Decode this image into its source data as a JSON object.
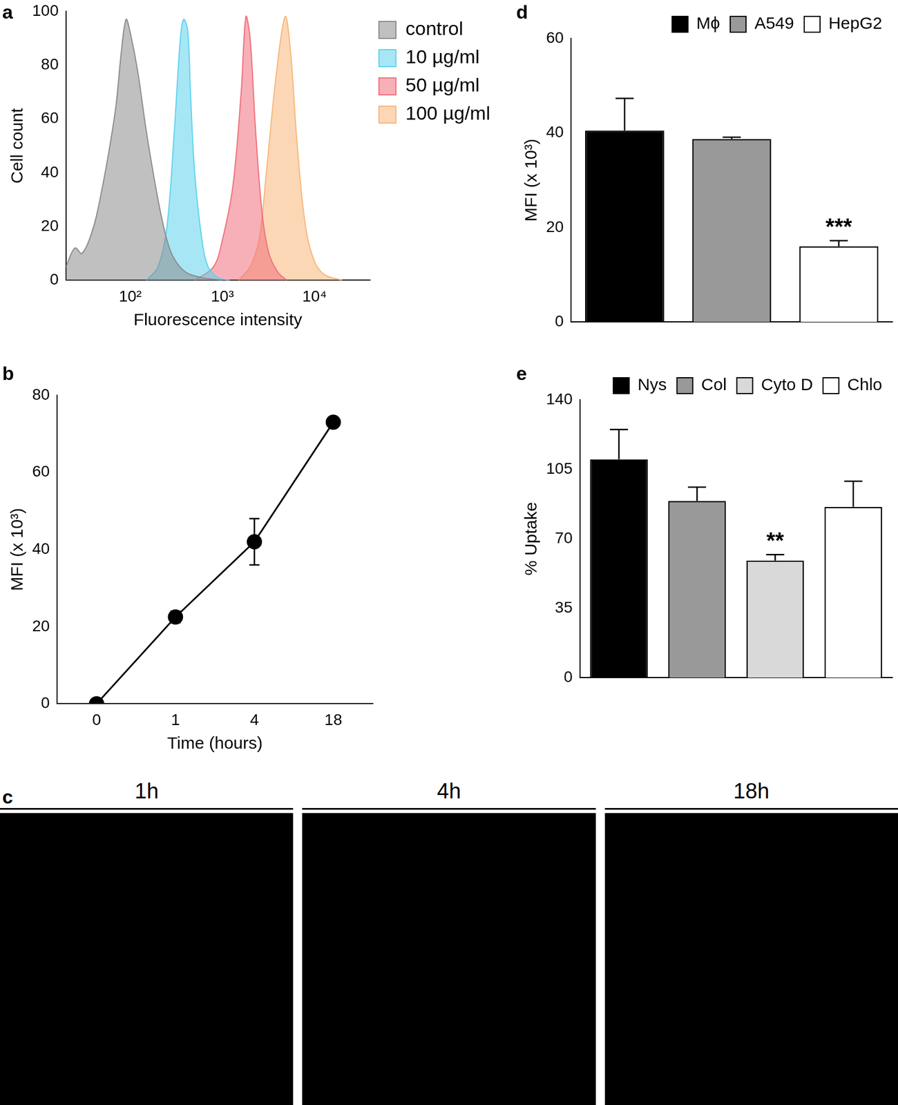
{
  "chart_data": [
    {
      "type": "area",
      "title": "a",
      "x_label": "Fluorescence intensity",
      "y_label": "Cell count",
      "log": "x",
      "grid": false,
      "legend": "right",
      "xlim": [
        20,
        40000
      ],
      "xticks": [
        {
          "value": 100,
          "label": "10²"
        },
        {
          "value": 1000,
          "label": "10³"
        },
        {
          "value": 10000,
          "label": "10⁴"
        }
      ],
      "ylim": [
        0,
        100
      ],
      "yticks": [
        0,
        20,
        40,
        60,
        80,
        100
      ],
      "series": [
        {
          "name": "control",
          "color": "#8c8c8c",
          "x": [
            20,
            25,
            30,
            40,
            50,
            60,
            70,
            80,
            90,
            100,
            120,
            150,
            200,
            250,
            300,
            400,
            600,
            1000
          ],
          "values": [
            5,
            12,
            10,
            20,
            35,
            50,
            65,
            85,
            97,
            92,
            78,
            55,
            30,
            15,
            8,
            3,
            1,
            0
          ]
        },
        {
          "name": "10 µg/ml",
          "color": "#5fd3ec",
          "x": [
            150,
            200,
            250,
            300,
            350,
            380,
            420,
            450,
            500,
            600,
            700,
            900,
            1200
          ],
          "values": [
            0,
            5,
            20,
            55,
            90,
            97,
            93,
            70,
            40,
            15,
            5,
            1,
            0
          ]
        },
        {
          "name": "50 µg/ml",
          "color": "#f0707c",
          "x": [
            500,
            800,
            1000,
            1300,
            1600,
            1800,
            2000,
            2300,
            2700,
            3200,
            4000,
            5000
          ],
          "values": [
            0,
            5,
            15,
            35,
            70,
            98,
            90,
            55,
            25,
            10,
            3,
            0
          ]
        },
        {
          "name": "100 µg/ml",
          "color": "#f7b77a",
          "x": [
            1500,
            2000,
            2500,
            3000,
            3800,
            4800,
            5500,
            6500,
            8000,
            10000,
            13000,
            20000
          ],
          "values": [
            0,
            5,
            15,
            40,
            75,
            98,
            85,
            50,
            20,
            7,
            2,
            0
          ]
        }
      ]
    },
    {
      "type": "line",
      "title": "b",
      "x_label": "Time (hours)",
      "y_label": "MFI (x 10³)",
      "grid": false,
      "marker": "circle",
      "color": "#000000",
      "categories": [
        "0",
        "1",
        "4",
        "18"
      ],
      "values": [
        0,
        22.5,
        42,
        73
      ],
      "errors": [
        null,
        1.5,
        6,
        null
      ],
      "ylim": [
        0,
        80
      ],
      "yticks": [
        0,
        20,
        40,
        60,
        80
      ]
    },
    {
      "type": "image",
      "title": "c",
      "panels": [
        "1h",
        "4h",
        "18h"
      ]
    },
    {
      "type": "bar",
      "title": "d",
      "y_label": "MFI (x 10³)",
      "grid": false,
      "legend": "upper right",
      "tick_labels": "y",
      "categories": [
        "Mϕ",
        "A549",
        "HepG2"
      ],
      "values": [
        40.5,
        38.7,
        16
      ],
      "errors": [
        6.8,
        0.4,
        1.2
      ],
      "colors": [
        "#000000",
        "#999999",
        "#ffffff"
      ],
      "ylim": [
        0,
        60
      ],
      "yticks": [
        0,
        20,
        40,
        60
      ],
      "annotations": [
        {
          "category": "HepG2",
          "text": "***"
        }
      ]
    },
    {
      "type": "bar",
      "title": "e",
      "y_label": "% Uptake",
      "grid": false,
      "legend": "upper right",
      "tick_labels": "y",
      "categories": [
        "Nys",
        "Col",
        "Cyto D",
        "Chlo"
      ],
      "values": [
        110,
        89,
        59,
        86
      ],
      "errors": [
        15,
        7,
        3,
        13
      ],
      "colors": [
        "#000000",
        "#999999",
        "#d9d9d9",
        "#ffffff"
      ],
      "ylim": [
        0,
        140
      ],
      "yticks": [
        0,
        35,
        70,
        105,
        140
      ],
      "annotations": [
        {
          "category": "Cyto D",
          "text": "**"
        }
      ]
    }
  ]
}
